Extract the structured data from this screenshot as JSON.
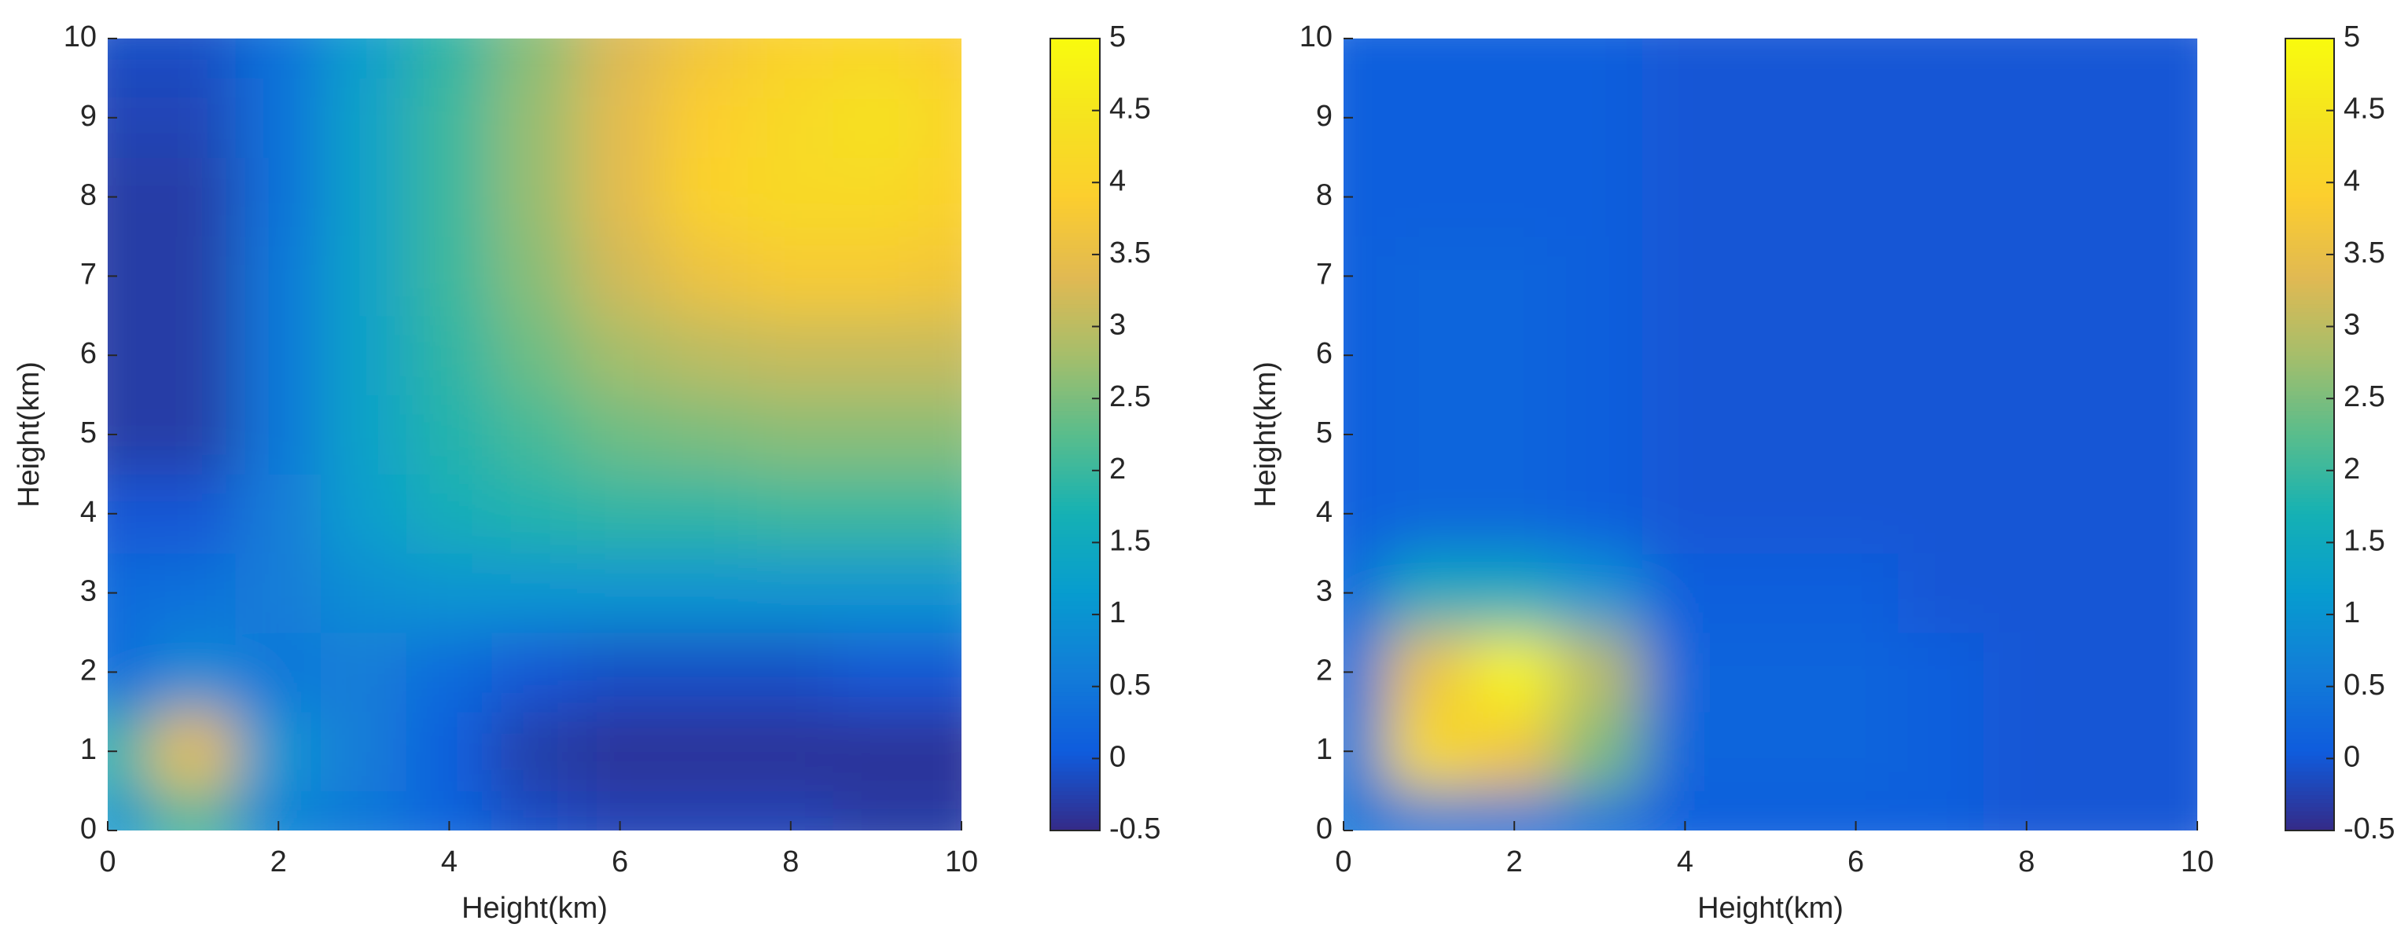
{
  "chart_data": [
    {
      "type": "heatmap",
      "xlabel": "Height(km)",
      "ylabel": "Height(km)",
      "colormap": "parula",
      "x": [
        0,
        1,
        2,
        3,
        4,
        5,
        6,
        7,
        8,
        9,
        10
      ],
      "y": [
        0,
        1,
        2,
        3,
        4,
        5,
        6,
        7,
        8,
        9,
        10
      ],
      "z": [
        [
          1.0,
          2.0,
          0.7,
          0.5,
          0.2,
          -0.1,
          -0.2,
          -0.2,
          -0.2,
          -0.3,
          -0.3
        ],
        [
          1.8,
          3.5,
          1.0,
          0.6,
          0.1,
          -0.3,
          -0.4,
          -0.4,
          -0.4,
          -0.4,
          -0.4
        ],
        [
          0.3,
          0.8,
          0.5,
          0.6,
          0.3,
          0.0,
          -0.1,
          -0.1,
          -0.1,
          0.0,
          0.0
        ],
        [
          0.3,
          0.4,
          0.6,
          0.9,
          1.0,
          1.0,
          1.0,
          1.0,
          1.0,
          1.0,
          1.0
        ],
        [
          0.0,
          0.0,
          0.6,
          1.2,
          1.6,
          1.8,
          1.9,
          1.9,
          2.0,
          2.0,
          2.0
        ],
        [
          -0.3,
          -0.3,
          0.5,
          1.3,
          1.8,
          2.1,
          2.4,
          2.5,
          2.6,
          2.6,
          2.6
        ],
        [
          -0.3,
          -0.3,
          0.5,
          1.3,
          1.9,
          2.4,
          2.8,
          3.0,
          3.1,
          3.1,
          3.1
        ],
        [
          -0.3,
          -0.3,
          0.5,
          1.3,
          2.0,
          2.6,
          3.2,
          3.6,
          3.8,
          3.8,
          3.7
        ],
        [
          -0.3,
          -0.3,
          0.4,
          1.3,
          2.0,
          2.7,
          3.4,
          4.0,
          4.2,
          4.2,
          4.0
        ],
        [
          -0.2,
          -0.2,
          0.4,
          1.3,
          2.0,
          2.7,
          3.4,
          3.9,
          4.2,
          4.4,
          4.1
        ],
        [
          -0.1,
          -0.1,
          0.4,
          1.2,
          1.9,
          2.6,
          3.3,
          3.7,
          4.0,
          4.1,
          3.9
        ]
      ],
      "xlim": [
        0,
        10
      ],
      "ylim": [
        0,
        10
      ],
      "xticks": [
        0,
        2,
        4,
        6,
        8,
        10
      ],
      "yticks": [
        0,
        1,
        2,
        3,
        4,
        5,
        6,
        7,
        8,
        9,
        10
      ],
      "clim": [
        -0.5,
        5
      ],
      "cticks": [
        -0.5,
        0,
        0.5,
        1,
        1.5,
        2,
        2.5,
        3,
        3.5,
        4,
        4.5,
        5
      ]
    },
    {
      "type": "heatmap",
      "xlabel": "Height(km)",
      "ylabel": "Height(km)",
      "colormap": "parula",
      "x": [
        0,
        1,
        2,
        3,
        4,
        5,
        6,
        7,
        8,
        9,
        10
      ],
      "y": [
        0,
        1,
        2,
        3,
        4,
        5,
        6,
        7,
        8,
        9,
        10
      ],
      "z": [
        [
          0.5,
          0.5,
          0.5,
          0.4,
          0.1,
          0.1,
          0.1,
          0.1,
          0.0,
          0.0,
          0.0
        ],
        [
          0.5,
          4.2,
          3.7,
          2.5,
          0.2,
          0.2,
          0.2,
          0.1,
          0.0,
          0.0,
          0.0
        ],
        [
          0.4,
          3.6,
          4.9,
          3.0,
          0.2,
          0.2,
          0.2,
          0.1,
          0.0,
          0.0,
          0.0
        ],
        [
          0.3,
          1.5,
          1.5,
          1.0,
          0.1,
          0.1,
          0.1,
          0.0,
          0.0,
          0.0,
          0.0
        ],
        [
          0.1,
          0.2,
          0.2,
          0.1,
          0.0,
          0.0,
          0.0,
          0.0,
          0.0,
          0.0,
          0.0
        ],
        [
          0.1,
          0.2,
          0.2,
          0.1,
          0.0,
          0.0,
          0.0,
          0.0,
          0.0,
          0.0,
          0.0
        ],
        [
          0.1,
          0.2,
          0.2,
          0.1,
          0.0,
          0.0,
          0.0,
          0.0,
          0.0,
          0.0,
          0.0
        ],
        [
          0.1,
          0.2,
          0.2,
          0.1,
          0.0,
          0.0,
          0.0,
          0.0,
          0.0,
          0.0,
          0.0
        ],
        [
          0.1,
          0.1,
          0.1,
          0.1,
          0.0,
          0.0,
          0.0,
          0.0,
          0.0,
          0.0,
          0.0
        ],
        [
          0.1,
          0.1,
          0.1,
          0.1,
          0.0,
          0.0,
          0.0,
          0.0,
          0.0,
          0.0,
          0.0
        ],
        [
          0.1,
          0.1,
          0.1,
          0.1,
          0.0,
          0.0,
          0.0,
          0.0,
          0.0,
          0.0,
          0.0
        ]
      ],
      "xlim": [
        0,
        10
      ],
      "ylim": [
        0,
        10
      ],
      "xticks": [
        0,
        2,
        4,
        6,
        8,
        10
      ],
      "yticks": [
        0,
        1,
        2,
        3,
        4,
        5,
        6,
        7,
        8,
        9,
        10
      ],
      "clim": [
        -0.5,
        5
      ],
      "cticks": [
        -0.5,
        0,
        0.5,
        1,
        1.5,
        2,
        2.5,
        3,
        3.5,
        4,
        4.5,
        5
      ]
    }
  ]
}
